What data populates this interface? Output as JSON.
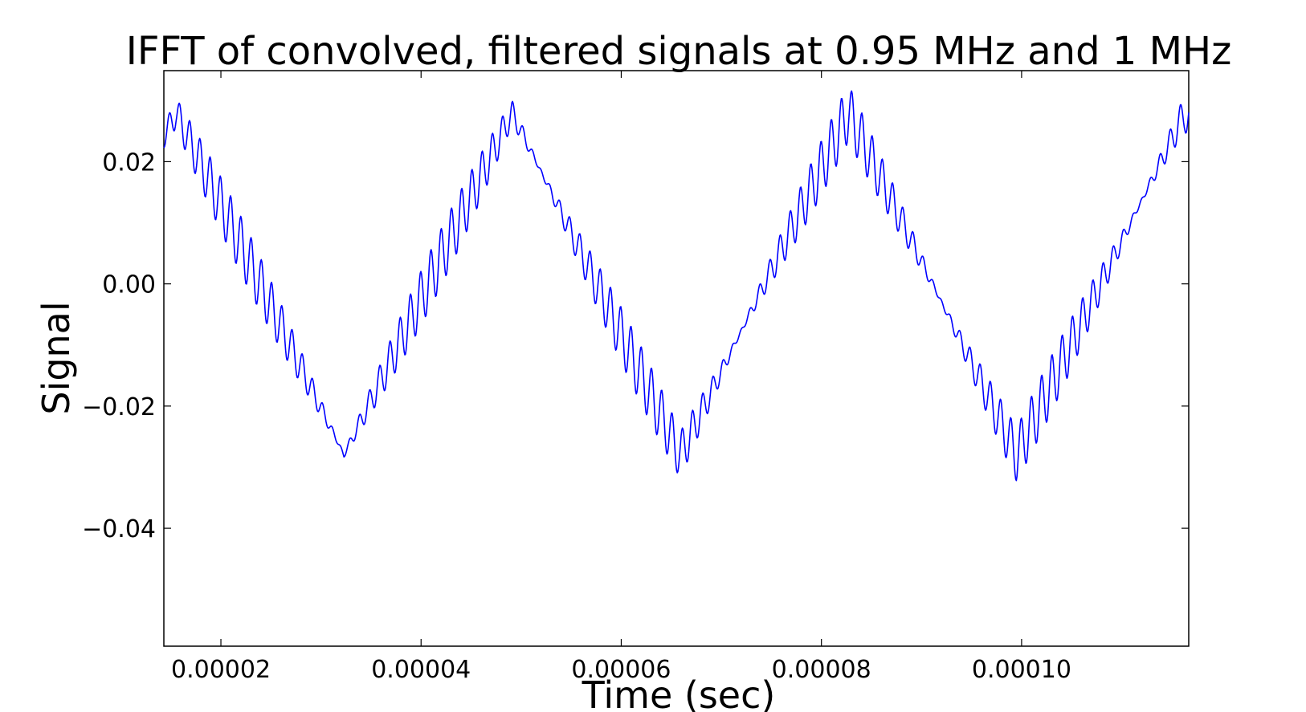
{
  "chart_data": {
    "type": "line",
    "title": "IFFT of convolved, filtered signals at 0.95 MHz and 1 MHz",
    "xlabel": "Time (sec)",
    "ylabel": "Signal",
    "xlim": [
      1.43e-05,
      0.0001167
    ],
    "ylim": [
      -0.0593,
      0.0349
    ],
    "xticks": [
      2e-05,
      4e-05,
      6e-05,
      8e-05,
      0.0001
    ],
    "xtick_labels": [
      "0.00002",
      "0.00004",
      "0.00006",
      "0.00008",
      "0.00010"
    ],
    "yticks": [
      0.02,
      0.0,
      -0.02,
      -0.04
    ],
    "ytick_labels": [
      "0.02",
      "0.00",
      "−0.02",
      "−0.04"
    ],
    "grid": false,
    "line_color": "#0000ff",
    "series": [
      {
        "x_start": 1.43e-05,
        "x_end": 0.0001167,
        "samples": 1600,
        "components": [
          {
            "shape": "triangle",
            "amplitude": 0.028,
            "period": 3.36e-05,
            "peak_at": 1.55e-05
          },
          {
            "shape": "sine",
            "amplitude": 0.0025,
            "frequency_hz": 1000000,
            "phase_rad": 0
          },
          {
            "shape": "sine",
            "amplitude": 0.0022,
            "frequency_hz": 950000,
            "phase_rad": 0.6
          }
        ]
      }
    ]
  }
}
